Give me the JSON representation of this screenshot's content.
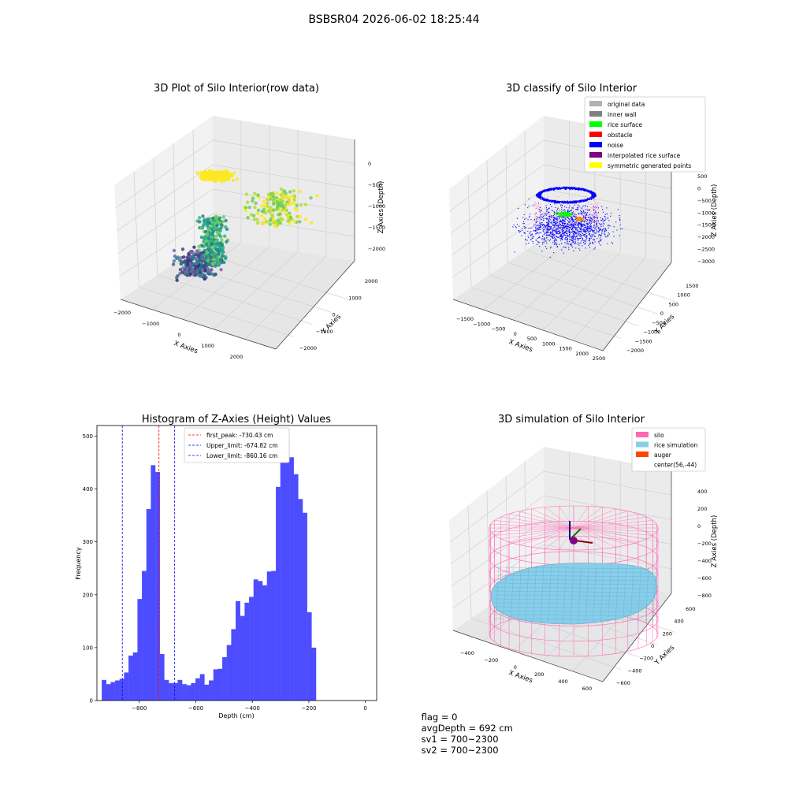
{
  "suptitle": "BSBSR04 2026-06-02 18:25:44",
  "status": {
    "flag": "flag = 0",
    "avg_depth": "avgDepth = 692 cm",
    "sv1": "sv1 = 700~2300",
    "sv2": "sv2 = 700~2300"
  },
  "colors": {
    "original_data": "#b3b3b3",
    "inner_wall": "#808080",
    "rice_surface": "#00ff00",
    "obstacle": "#ff0000",
    "noise": "#0000ff",
    "interpolated_rice_surface": "#800080",
    "symmetric_generated_points": "#ffff00",
    "silo": "#ff69b4",
    "rice_simulation": "#87ceeb",
    "auger": "#ff4500",
    "histogram_bar": "#4d4dff"
  },
  "panels": {
    "raw": {
      "title": "3D Plot of Silo Interior(row data)",
      "xlabel": "X Axies",
      "ylabel": "Y Axies",
      "zlabel": "Z Axies (Depth)",
      "x_ticks": [
        "−2000",
        "−1000",
        "0",
        "1000",
        "2000"
      ],
      "y_ticks": [
        "−2000",
        "−1000",
        "0",
        "1000",
        "2000"
      ],
      "z_ticks": [
        "0",
        "−500",
        "−1000",
        "−1500",
        "−2000"
      ]
    },
    "classify": {
      "title": "3D classify of Silo Interior",
      "xlabel": "X Axies",
      "ylabel": "Y Axies",
      "zlabel": "Z Axies (Depth)",
      "x_ticks": [
        "−1500",
        "−1000",
        "−500",
        "0",
        "500",
        "1000",
        "1500",
        "2000",
        "2500"
      ],
      "y_ticks": [
        "−2000",
        "−1500",
        "−1000",
        "−500",
        "0",
        "500",
        "1000",
        "1500"
      ],
      "z_ticks": [
        "500",
        "0",
        "−500",
        "−1000",
        "−1500",
        "−2000",
        "−2500",
        "−3000"
      ],
      "legend": [
        {
          "label": "original data",
          "color": "#b3b3b3"
        },
        {
          "label": "inner wall",
          "color": "#808080"
        },
        {
          "label": "rice surface",
          "color": "#00ff00"
        },
        {
          "label": "obstacle",
          "color": "#ff0000"
        },
        {
          "label": "noise",
          "color": "#0000ff"
        },
        {
          "label": "interpolated rice surface",
          "color": "#800080"
        },
        {
          "label": "symmetric generated points",
          "color": "#ffff00"
        }
      ]
    },
    "simulation": {
      "title": "3D simulation of Silo Interior",
      "xlabel": "X Axies",
      "ylabel": "Y Axies",
      "zlabel": "Z Axies (Depth)",
      "x_ticks": [
        "−400",
        "−200",
        "0",
        "200",
        "400",
        "600"
      ],
      "y_ticks": [
        "−600",
        "−400",
        "−200",
        "0",
        "200",
        "400",
        "600"
      ],
      "z_ticks": [
        "400",
        "200",
        "0",
        "−200",
        "−400",
        "−600",
        "−800"
      ],
      "legend": [
        {
          "label": "silo",
          "color": "#ff69b4"
        },
        {
          "label": "rice simulation",
          "color": "#87ceeb"
        },
        {
          "label": "auger",
          "color": "#ff4500"
        },
        {
          "label": "center(56,-44)",
          "color": "none"
        }
      ]
    }
  },
  "chart_data": [
    {
      "type": "bar",
      "title": "Histogram of Z-Axies (Height) Values",
      "xlabel": "Depth (cm)",
      "ylabel": "Frequency",
      "xlim": [
        -950,
        40
      ],
      "ylim": [
        0,
        520
      ],
      "x_ticks": [
        -800,
        -600,
        -400,
        -200,
        0
      ],
      "x_tick_labels": [
        "−800",
        "−600",
        "−400",
        "−200",
        "0"
      ],
      "y_ticks": [
        0,
        100,
        200,
        300,
        400,
        500
      ],
      "bin_width": 15.8,
      "bin_start": -933,
      "values": [
        39,
        31,
        35,
        38,
        41,
        53,
        85,
        91,
        192,
        245,
        362,
        445,
        432,
        88,
        39,
        33,
        33,
        39,
        31,
        29,
        33,
        42,
        50,
        30,
        38,
        59,
        60,
        82,
        105,
        135,
        188,
        160,
        185,
        196,
        229,
        226,
        218,
        244,
        245,
        404,
        461,
        495,
        460,
        428,
        381,
        355,
        167,
        100
      ],
      "lines": [
        {
          "label": "first_peak: -730.43 cm",
          "x": -730.43,
          "color": "#ff0000"
        },
        {
          "label": "Upper_limit: -674.82 cm",
          "x": -674.82,
          "color": "#0000ff"
        },
        {
          "label": "Lower_limit: -860.16 cm",
          "x": -860.16,
          "color": "#0000ff"
        }
      ],
      "legend_position": "top-center"
    }
  ]
}
